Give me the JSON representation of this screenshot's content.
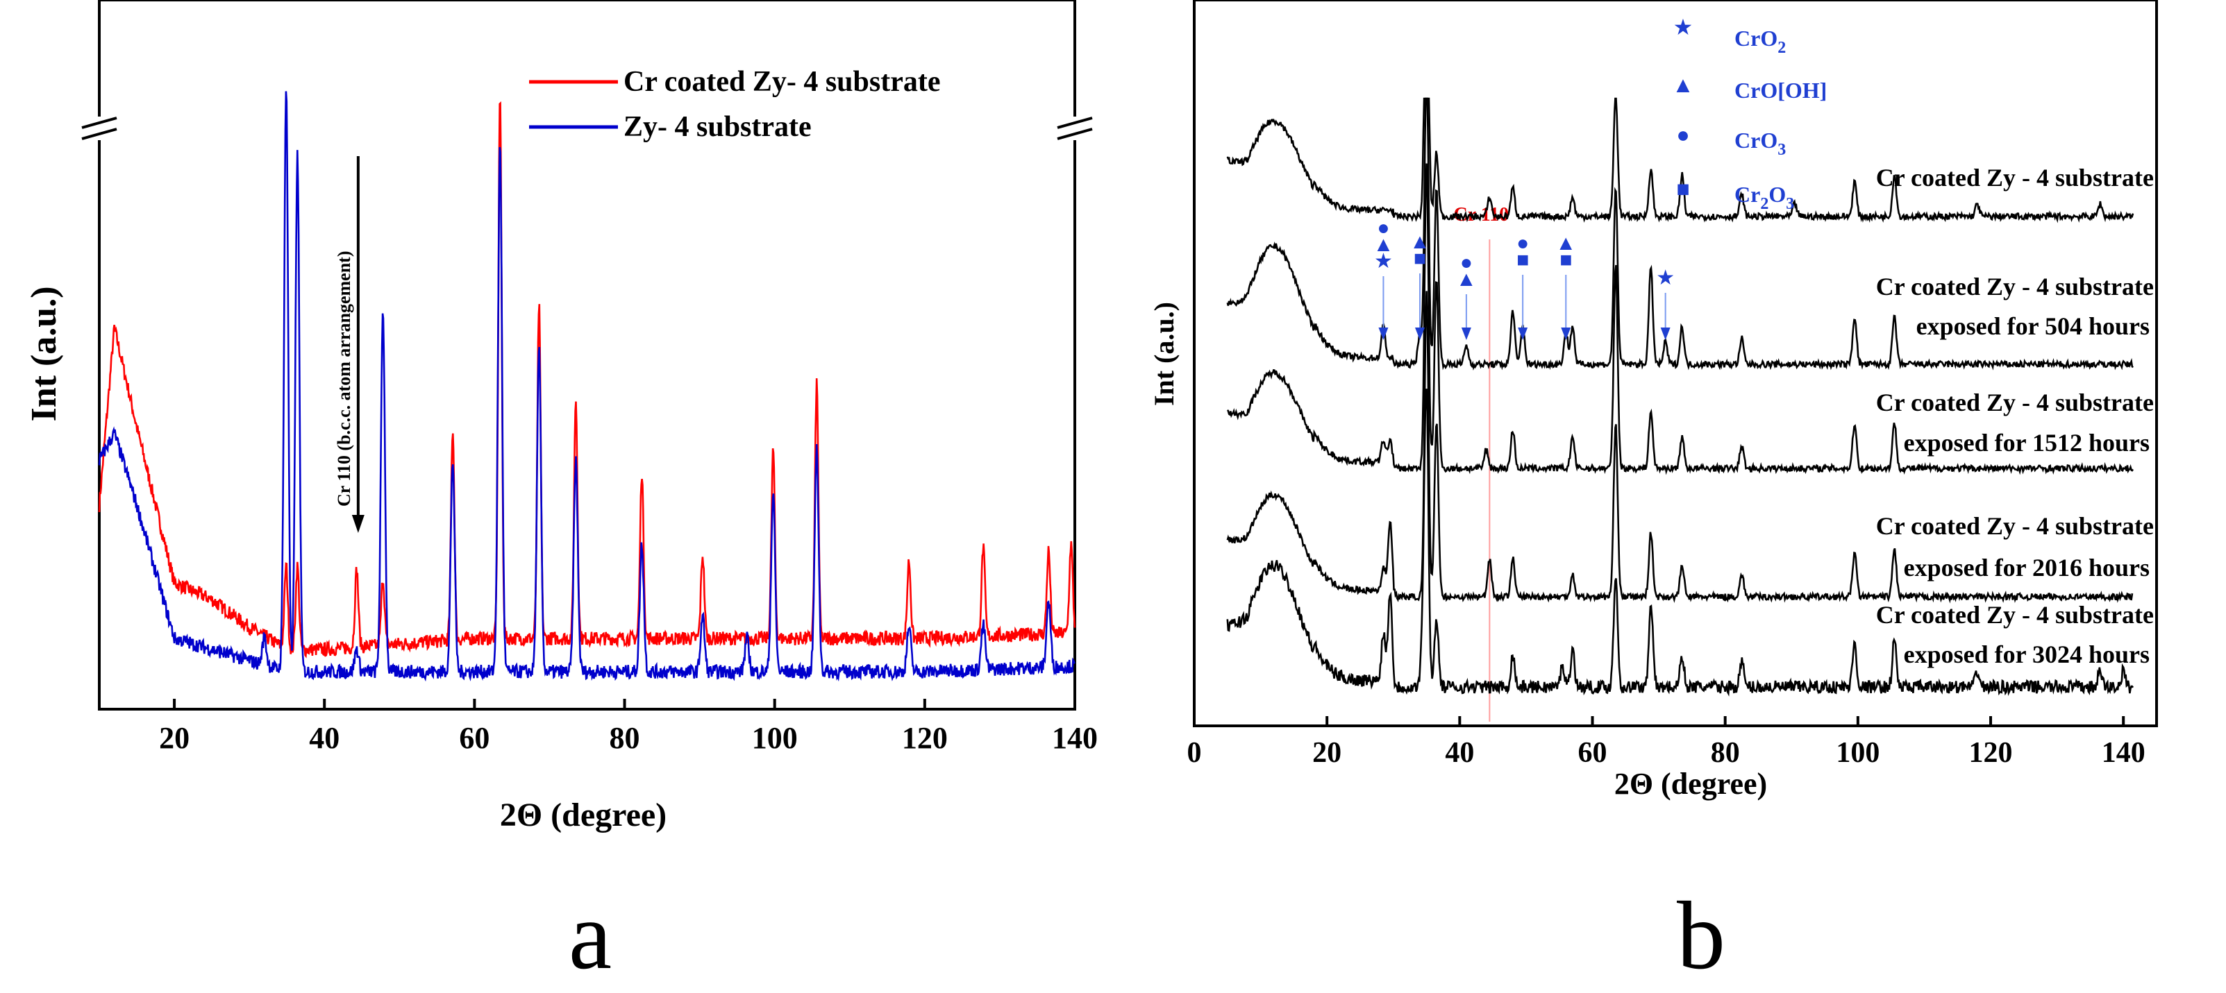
{
  "chart_data": [
    {
      "panel": "a",
      "type": "line",
      "xlabel": "2Θ (degree)",
      "ylabel": "Int (a.u.)",
      "xlim": [
        10,
        140
      ],
      "xticks": [
        20,
        40,
        60,
        80,
        100,
        120,
        140
      ],
      "annotation": "Cr 110 (b.c.c. atom arrangement)",
      "annotation_x": 44.5,
      "legend_position": "top-right",
      "series": [
        {
          "name": "Cr coated Zy- 4 substrate",
          "color": "#ff0000",
          "baseline": [
            [
              10,
              0.34
            ],
            [
              12,
              0.66
            ],
            [
              15,
              0.48
            ],
            [
              20,
              0.2
            ],
            [
              25,
              0.17
            ],
            [
              30,
              0.12
            ],
            [
              35,
              0.08
            ],
            [
              40,
              0.08
            ],
            [
              60,
              0.1
            ],
            [
              90,
              0.1
            ],
            [
              120,
              0.1
            ],
            [
              140,
              0.11
            ]
          ],
          "peaks": [
            [
              34.9,
              0.15
            ],
            [
              36.4,
              0.15
            ],
            [
              44.3,
              0.14
            ],
            [
              47.8,
              0.12
            ],
            [
              57.1,
              0.38
            ],
            [
              63.4,
              0.98
            ],
            [
              68.6,
              0.6
            ],
            [
              73.5,
              0.43
            ],
            [
              82.3,
              0.3
            ],
            [
              90.4,
              0.15
            ],
            [
              99.8,
              0.34
            ],
            [
              105.6,
              0.46
            ],
            [
              117.9,
              0.14
            ],
            [
              127.8,
              0.16
            ],
            [
              136.5,
              0.15
            ],
            [
              139.5,
              0.16
            ]
          ]
        },
        {
          "name": "Zy- 4 substrate",
          "color": "#0000cc",
          "baseline": [
            [
              10,
              0.42
            ],
            [
              12,
              0.47
            ],
            [
              15,
              0.34
            ],
            [
              20,
              0.1
            ],
            [
              25,
              0.08
            ],
            [
              30,
              0.06
            ],
            [
              35,
              0.04
            ],
            [
              40,
              0.04
            ],
            [
              60,
              0.04
            ],
            [
              90,
              0.04
            ],
            [
              120,
              0.04
            ],
            [
              140,
              0.05
            ]
          ],
          "peaks": [
            [
              32.0,
              0.05
            ],
            [
              34.9,
              1.05
            ],
            [
              36.4,
              0.93
            ],
            [
              44.3,
              0.04
            ],
            [
              47.8,
              0.65
            ],
            [
              57.1,
              0.38
            ],
            [
              63.4,
              0.95
            ],
            [
              68.6,
              0.58
            ],
            [
              73.5,
              0.38
            ],
            [
              82.3,
              0.23
            ],
            [
              90.4,
              0.1
            ],
            [
              96.3,
              0.06
            ],
            [
              99.8,
              0.32
            ],
            [
              105.6,
              0.4
            ],
            [
              117.9,
              0.08
            ],
            [
              127.8,
              0.08
            ],
            [
              136.5,
              0.12
            ]
          ]
        }
      ]
    },
    {
      "panel": "b",
      "type": "line",
      "xlabel": "2Θ (degree)",
      "ylabel": "Int (a.u.)",
      "xlim": [
        0,
        145
      ],
      "xticks": [
        0,
        20,
        40,
        60,
        80,
        100,
        120,
        140
      ],
      "annotation": "Cr 110",
      "annotation_x": 44.5,
      "legend": [
        {
          "symbol": "★",
          "label_main": "CrO",
          "label_sub": "2",
          "label_after": ""
        },
        {
          "symbol": "▲",
          "label_main": "CrO[OH]",
          "label_sub": "",
          "label_after": ""
        },
        {
          "symbol": "●",
          "label_main": "CrO",
          "label_sub": "3",
          "label_after": ""
        },
        {
          "symbol": "■",
          "label_main": "Cr",
          "label_sub": "2",
          "label_after": "O",
          "label_sub2": "3"
        }
      ],
      "phase_marks": [
        {
          "x": 28.5,
          "symbols": [
            "●",
            "▲",
            "★"
          ]
        },
        {
          "x": 34.0,
          "symbols": [
            "▲",
            "■"
          ]
        },
        {
          "x": 41.0,
          "symbols": [
            "●",
            "▲"
          ]
        },
        {
          "x": 49.5,
          "symbols": [
            "●",
            "■"
          ]
        },
        {
          "x": 56.0,
          "symbols": [
            "▲",
            "■"
          ]
        },
        {
          "x": 71.0,
          "symbols": [
            "★"
          ]
        }
      ],
      "series": [
        {
          "label_line1": "Cr coated Zy - 4 substrate",
          "label_line2": "",
          "hump": 0.3,
          "peaks": [
            [
              35.0,
              0.97
            ],
            [
              36.5,
              0.2
            ],
            [
              44.5,
              0.06
            ],
            [
              48.0,
              0.09
            ],
            [
              57.0,
              0.06
            ],
            [
              63.5,
              0.39
            ],
            [
              68.8,
              0.15
            ],
            [
              73.5,
              0.13
            ],
            [
              82.5,
              0.07
            ],
            [
              90.5,
              0.04
            ],
            [
              99.5,
              0.11
            ],
            [
              105.5,
              0.13
            ],
            [
              118.0,
              0.04
            ],
            [
              136.5,
              0.04
            ]
          ]
        },
        {
          "label_line1": "Cr coated Zy - 4 substrate",
          "label_line2": "exposed for 504 hours",
          "hump": 0.37,
          "peaks": [
            [
              28.5,
              0.1
            ],
            [
              34.0,
              0.1
            ],
            [
              35.0,
              0.95
            ],
            [
              36.5,
              0.55
            ],
            [
              41.0,
              0.06
            ],
            [
              48.0,
              0.17
            ],
            [
              49.5,
              0.12
            ],
            [
              56.0,
              0.1
            ],
            [
              57.0,
              0.12
            ],
            [
              63.5,
              0.55
            ],
            [
              68.8,
              0.3
            ],
            [
              71.0,
              0.07
            ],
            [
              73.5,
              0.12
            ],
            [
              82.5,
              0.08
            ],
            [
              99.5,
              0.15
            ],
            [
              105.5,
              0.15
            ]
          ]
        },
        {
          "label_line1": "Cr coated Zy - 4 substrate",
          "label_line2": "exposed for 1512 hours",
          "hump": 0.3,
          "peaks": [
            [
              28.5,
              0.07
            ],
            [
              29.5,
              0.07
            ],
            [
              35.0,
              0.95
            ],
            [
              36.5,
              0.6
            ],
            [
              44.0,
              0.06
            ],
            [
              48.0,
              0.12
            ],
            [
              57.0,
              0.1
            ],
            [
              63.5,
              0.64
            ],
            [
              68.8,
              0.18
            ],
            [
              73.5,
              0.1
            ],
            [
              82.5,
              0.07
            ],
            [
              99.5,
              0.14
            ],
            [
              105.5,
              0.14
            ]
          ]
        },
        {
          "label_line1": "Cr coated Zy - 4 substrate",
          "label_line2": "exposed for 2016 hours",
          "hump": 0.32,
          "peaks": [
            [
              28.5,
              0.07
            ],
            [
              29.5,
              0.22
            ],
            [
              35.0,
              0.95
            ],
            [
              36.5,
              0.55
            ],
            [
              44.5,
              0.12
            ],
            [
              48.0,
              0.12
            ],
            [
              57.0,
              0.07
            ],
            [
              63.5,
              0.55
            ],
            [
              68.8,
              0.2
            ],
            [
              73.5,
              0.1
            ],
            [
              82.5,
              0.07
            ],
            [
              99.5,
              0.14
            ],
            [
              105.5,
              0.15
            ]
          ]
        },
        {
          "label_line1": "Cr coated Zy - 4 substrate",
          "label_line2": "exposed for 3024 hours",
          "hump": 0.38,
          "peaks": [
            [
              28.5,
              0.15
            ],
            [
              29.5,
              0.28
            ],
            [
              34.5,
              0.2
            ],
            [
              35.0,
              0.9
            ],
            [
              36.5,
              0.22
            ],
            [
              48.0,
              0.1
            ],
            [
              55.5,
              0.07
            ],
            [
              57.0,
              0.12
            ],
            [
              63.5,
              0.35
            ],
            [
              68.8,
              0.27
            ],
            [
              73.5,
              0.1
            ],
            [
              82.5,
              0.08
            ],
            [
              99.5,
              0.14
            ],
            [
              105.5,
              0.15
            ],
            [
              118.0,
              0.05
            ],
            [
              136.5,
              0.05
            ],
            [
              140.0,
              0.05
            ]
          ]
        }
      ]
    }
  ],
  "panel_labels": [
    "a",
    "b"
  ],
  "colors": {
    "red_series": "#ff0000",
    "blue_series": "#0000cc",
    "black_series": "#000000",
    "legend_blue": "#1f3fd1",
    "cr110_marker": "#ff9d9d",
    "cr110_label": "#e00000",
    "phase_arrow": "#7a9af0"
  }
}
